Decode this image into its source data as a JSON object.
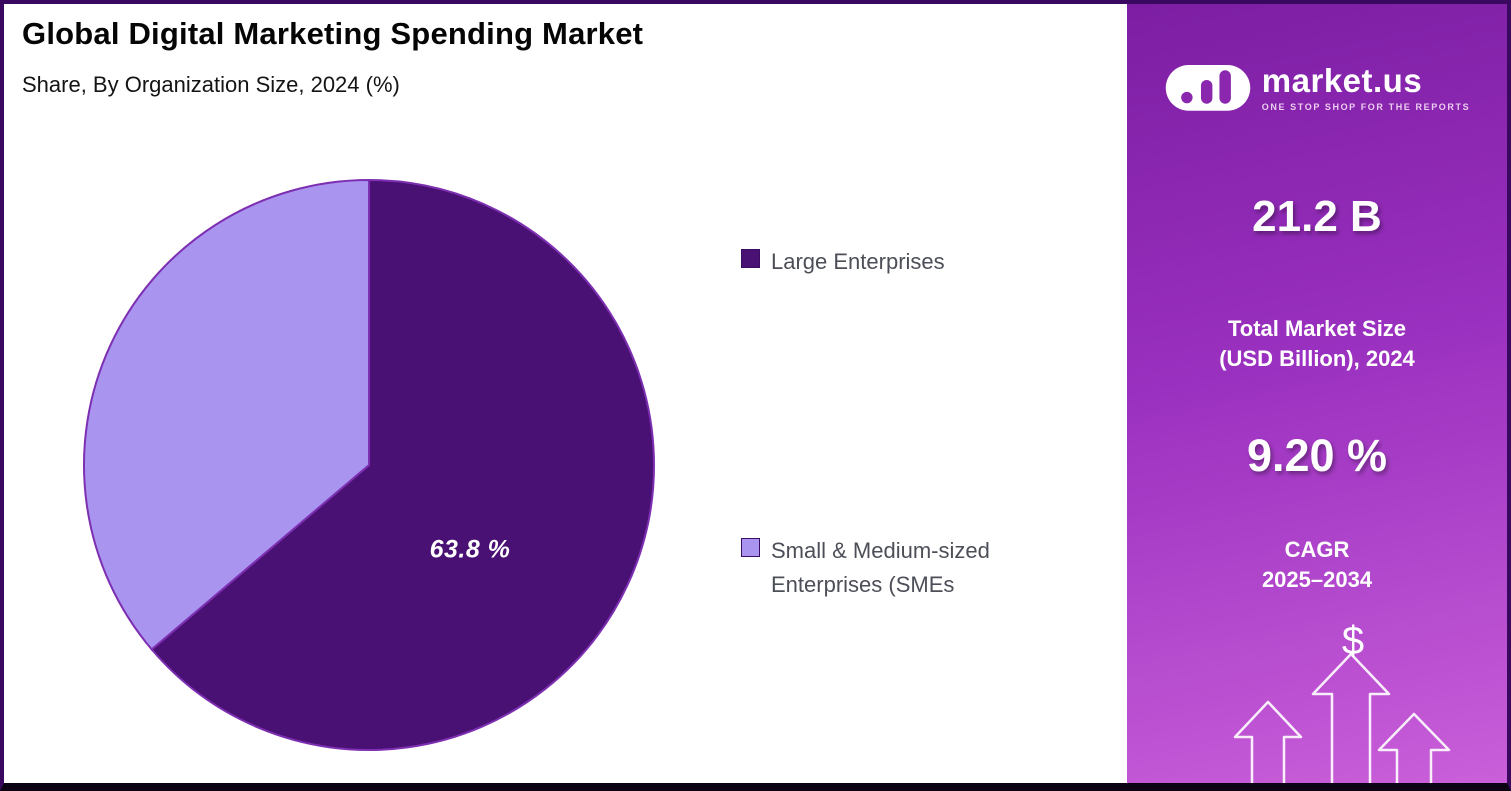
{
  "header": {
    "title": "Global Digital Marketing Spending Market",
    "subtitle": "Share, By Organization Size, 2024 (%)"
  },
  "chart_data": {
    "type": "pie",
    "title": "Global Digital Marketing Spending Market",
    "subtitle": "Share, By Organization Size, 2024 (%)",
    "legend_position": "right",
    "start_angle_deg": 0,
    "direction": "clockwise",
    "stroke": "#7d2fb2",
    "slices": [
      {
        "label": "Large Enterprises",
        "value": 63.8,
        "color": "#4a1174",
        "data_label": "63.8 %"
      },
      {
        "label": "Small & Medium-sized Enterprises (SMEs",
        "value": 36.2,
        "color": "#a995f0",
        "data_label": ""
      }
    ]
  },
  "sidebar": {
    "logo_name": "market.us",
    "logo_tagline": "ONE STOP SHOP FOR THE REPORTS",
    "market_size_value": "21.2 B",
    "market_size_label_line1": "Total Market Size",
    "market_size_label_line2": "(USD Billion), 2024",
    "cagr_value": "9.20 %",
    "cagr_label_line1": "CAGR",
    "cagr_label_line2": "2025–2034",
    "dollar_symbol": "$"
  }
}
